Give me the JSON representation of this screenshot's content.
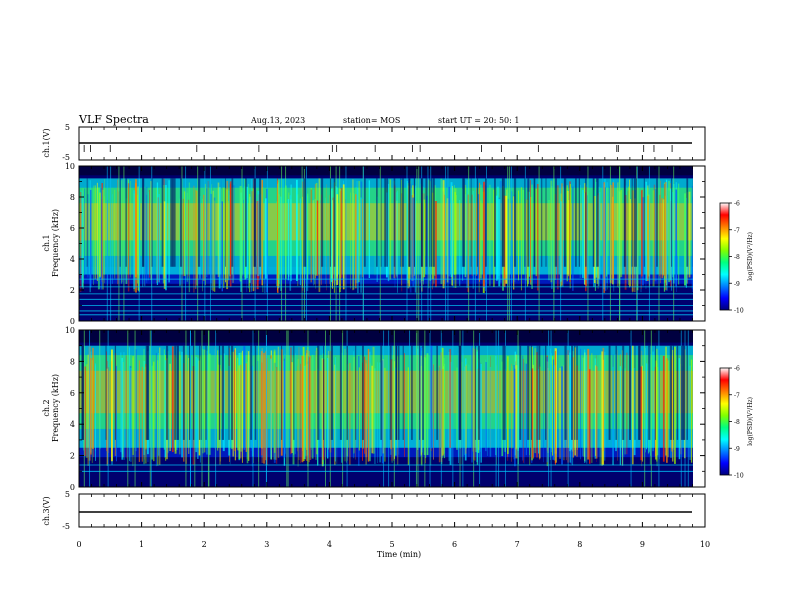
{
  "header": {
    "title": "VLF Spectra",
    "date": "Aug.13, 2023",
    "station": "station= MOS",
    "start": "start  UT  =   20: 50: 1"
  },
  "colors": {
    "background": "#000080",
    "colormap": [
      "#00007a",
      "#0000ff",
      "#0080ff",
      "#00ffff",
      "#00ff80",
      "#80ff00",
      "#ffff00",
      "#ff8000",
      "#ff0000",
      "#ffffff"
    ]
  },
  "chart_data": [
    {
      "type": "line",
      "panel": "ch1-voltage",
      "ylabel": "ch.1(V)",
      "ylim": [
        -5,
        5
      ],
      "ytick_labels": [
        "5",
        "-5"
      ],
      "xlim": [
        0,
        10
      ],
      "series": [
        {
          "values": [
            0,
            0
          ]
        }
      ]
    },
    {
      "type": "heatmap",
      "panel": "ch1-spectrogram",
      "ylabel_channel": "ch.1",
      "ylabel": "Frequency (kHz)",
      "ylim": [
        0,
        10
      ],
      "yticks": [
        0,
        2,
        4,
        6,
        8,
        10
      ],
      "xlim": [
        0,
        9.85
      ],
      "band_kHz": [
        3,
        9.2
      ],
      "lines_kHz": [
        0.4,
        0.65,
        1.0,
        1.4,
        1.75,
        2.2,
        2.7
      ],
      "colorbar": {
        "label": "log(PSD)(V²/Hz)",
        "ticks": [
          -6,
          -7,
          -8,
          -9,
          -10
        ],
        "range": [
          -10,
          -6
        ]
      }
    },
    {
      "type": "heatmap",
      "panel": "ch2-spectrogram",
      "ylabel_channel": "ch.2",
      "ylabel": "Frequency (kHz)",
      "ylim": [
        0,
        10
      ],
      "yticks": [
        0,
        2,
        4,
        6,
        8,
        10
      ],
      "xlim": [
        0,
        9.85
      ],
      "band_kHz": [
        2.5,
        9
      ],
      "lines_kHz": [
        1.0,
        1.4
      ],
      "colorbar": {
        "label": "log(PSD)(V²/Hz)",
        "ticks": [
          -6,
          -7,
          -8,
          -9,
          -10
        ],
        "range": [
          -10,
          -6
        ]
      }
    },
    {
      "type": "line",
      "panel": "ch3-voltage",
      "ylabel": "ch.3(V)",
      "ylim": [
        -5,
        5
      ],
      "ytick_labels": [
        "5",
        "-5"
      ],
      "xlim": [
        0,
        10
      ],
      "series": [
        {
          "values": [
            0,
            0
          ]
        }
      ]
    }
  ],
  "xaxis": {
    "label": "Time (min)",
    "range": [
      0,
      10
    ],
    "ticks": [
      0,
      1,
      2,
      3,
      4,
      5,
      6,
      7,
      8,
      9,
      10
    ]
  }
}
